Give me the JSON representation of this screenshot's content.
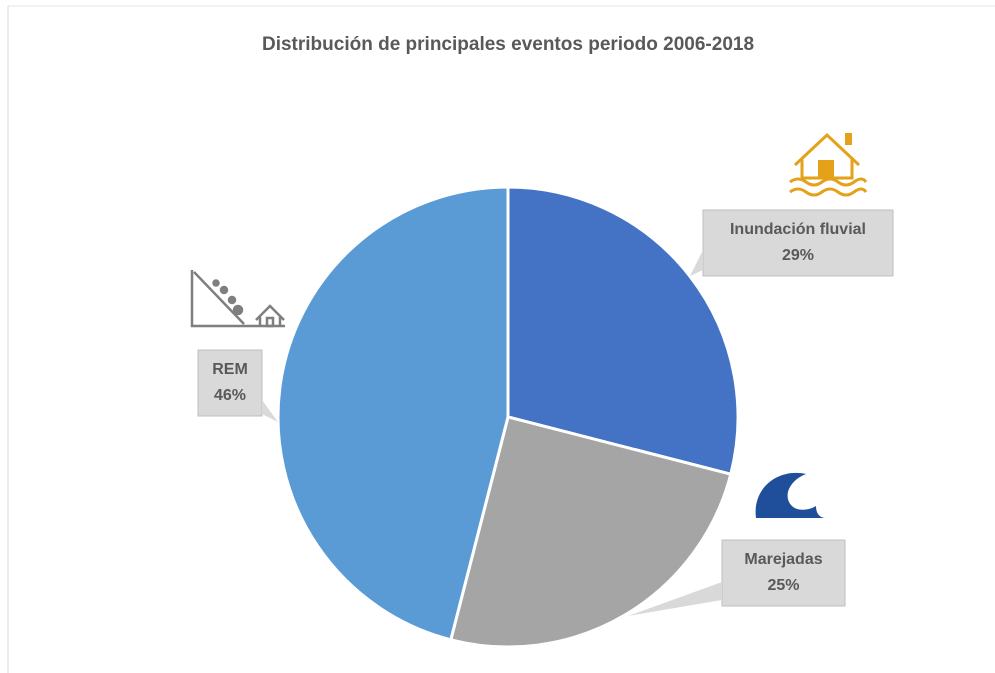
{
  "chart_data": {
    "type": "pie",
    "title": "Distribución de principales eventos periodo 2006-2018",
    "categories": [
      "Inundación fluvial",
      "Marejadas",
      "REM"
    ],
    "values": [
      29,
      25,
      46
    ],
    "value_labels": [
      "29%",
      "25%",
      "46%"
    ],
    "colors": [
      "#4472c4",
      "#a5a5a5",
      "#5b9bd5"
    ]
  }
}
